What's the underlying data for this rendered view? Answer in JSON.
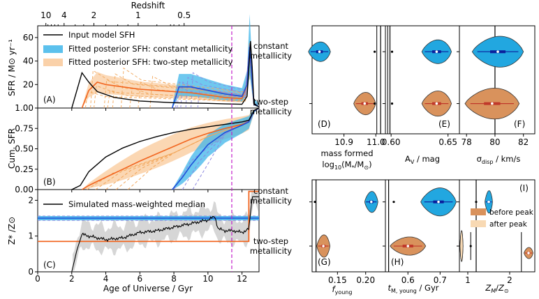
{
  "chart_data": [
    {
      "type": "line",
      "panel_label": "(A)",
      "title": "Redshift",
      "top_ticks": [
        "10",
        "4",
        "2",
        "1",
        "0.5"
      ],
      "top_tick_ages": [
        0.48,
        1.55,
        3.3,
        5.9,
        8.6
      ],
      "ylabel": "SFR / M⊙ yr⁻¹",
      "ylim": [
        0,
        70
      ],
      "xlim": [
        0,
        13
      ],
      "y_ticks": [
        "1.00",
        "20",
        "40",
        "60"
      ],
      "y_tick_values": [
        0,
        20,
        40,
        60
      ],
      "legend": [
        "Input model SFH",
        "Fitted posterior SFH: constant metallicity",
        "Fitted posterior SFH: two-step metallicity"
      ],
      "colors": {
        "input": "#000000",
        "constant": "#1f4fd8",
        "constant_band": "#3fb6ea",
        "twostep": "#f2651f",
        "twostep_band": "#f9c99a",
        "twostep_dash": "#f2a65a",
        "constant_dash": "#8b87e0"
      },
      "series": [
        {
          "name": "Input model SFH",
          "x": [
            2.0,
            2.6,
            3.0,
            3.5,
            4.5,
            6.0,
            8.0,
            10.0,
            11.0,
            12.0,
            12.3,
            12.5,
            12.6,
            12.7,
            13.0
          ],
          "y": [
            0,
            30,
            22,
            14,
            9,
            6,
            4.5,
            4,
            3.5,
            3.2,
            10,
            57,
            35,
            3,
            1
          ]
        },
        {
          "name": "Fitted posterior SFH: constant metallicity",
          "x": [
            7.9,
            8.3,
            9.0,
            10.0,
            11.0,
            12.0,
            12.3,
            12.45,
            12.6,
            12.7,
            13.0
          ],
          "y": [
            0,
            18,
            18,
            15,
            12,
            10,
            20,
            52,
            22,
            4,
            1
          ]
        },
        {
          "name": "Fitted posterior SFH: two-step metallicity",
          "x": [
            2.6,
            3.0,
            3.5,
            4.0,
            5.0,
            6.0,
            7.0,
            8.0,
            9.0,
            10.0,
            11.0,
            12.0,
            12.3,
            12.45,
            12.6,
            12.7,
            13.0
          ],
          "y": [
            0,
            15,
            22,
            20,
            18,
            16,
            15,
            14,
            13,
            11,
            9,
            8,
            20,
            50,
            22,
            4,
            1
          ]
        }
      ],
      "annotations": [
        "vertical dashed line at age 11.4 Gyr"
      ]
    },
    {
      "type": "line",
      "panel_label": "(B)",
      "ylabel": "Cum. SFR",
      "ylim": [
        0,
        1
      ],
      "xlim": [
        0,
        13
      ],
      "y_ticks": [
        "0.00",
        "0.25",
        "0.50",
        "0.75"
      ],
      "y_tick_values": [
        0,
        0.25,
        0.5,
        0.75
      ],
      "series": [
        {
          "name": "Input model SFH",
          "x": [
            2.0,
            2.5,
            3.0,
            4.0,
            5.0,
            6.0,
            7.0,
            8.0,
            9.0,
            10.0,
            11.0,
            12.0,
            12.4,
            12.7,
            13.0
          ],
          "y": [
            0,
            0.05,
            0.22,
            0.4,
            0.51,
            0.59,
            0.65,
            0.7,
            0.74,
            0.77,
            0.8,
            0.83,
            0.85,
            0.97,
            1.0
          ]
        },
        {
          "name": "Fitted posterior SFH: two-step metallicity",
          "x": [
            2.6,
            3.0,
            4.0,
            5.0,
            6.0,
            7.0,
            8.0,
            9.0,
            10.0,
            11.0,
            12.0,
            12.4,
            12.7,
            13.0
          ],
          "y": [
            0,
            0.05,
            0.15,
            0.25,
            0.35,
            0.44,
            0.53,
            0.62,
            0.69,
            0.75,
            0.8,
            0.83,
            0.96,
            1.0
          ]
        },
        {
          "name": "Fitted posterior SFH: constant metallicity",
          "x": [
            7.9,
            8.5,
            9.0,
            10.0,
            11.0,
            12.0,
            12.4,
            12.7,
            13.0
          ],
          "y": [
            0,
            0.15,
            0.3,
            0.55,
            0.7,
            0.79,
            0.83,
            0.96,
            1.0
          ]
        }
      ]
    },
    {
      "type": "line",
      "panel_label": "(C)",
      "ylabel": "Z* /Z⊙",
      "xlabel": "Age of Universe / Gyr",
      "ylim": [
        0,
        2.3
      ],
      "xlim": [
        0,
        13
      ],
      "x_ticks": [
        "0",
        "2",
        "4",
        "6",
        "8",
        "10",
        "12"
      ],
      "x_tick_values": [
        0,
        2,
        4,
        6,
        8,
        10,
        12
      ],
      "y_ticks": [
        "0",
        "1",
        "2"
      ],
      "y_tick_values": [
        0,
        1,
        2
      ],
      "legend": [
        "Simulated mass-weighted median"
      ],
      "series": [
        {
          "name": "Simulated mass-weighted median",
          "x": [
            2.0,
            2.3,
            2.6,
            3.0,
            4.0,
            5.0,
            6.0,
            7.0,
            8.0,
            9.0,
            10.0,
            10.4,
            10.6,
            11.0,
            11.5,
            12.0,
            12.4,
            12.6,
            13.0
          ],
          "y": [
            0,
            0.6,
            1.05,
            1.0,
            0.9,
            0.95,
            1.1,
            1.15,
            1.25,
            1.35,
            1.45,
            1.55,
            1.2,
            1.15,
            1.15,
            1.1,
            1.2,
            2.1,
            2.1
          ]
        },
        {
          "name": "constant metallicity",
          "x": [
            0,
            13
          ],
          "y": [
            1.5,
            1.5
          ]
        },
        {
          "name": "two-step metallicity",
          "x": [
            0,
            12.4,
            12.4,
            13
          ],
          "y": [
            0.85,
            0.85,
            2.25,
            2.25
          ]
        }
      ]
    },
    {
      "type": "violin",
      "rows": [
        "constant metallicity",
        "two-step metallicity"
      ],
      "panels": [
        {
          "label": "(D)",
          "xlabel": "mass formed log10(M*/M⊙)",
          "x_ticks": [
            "10.9",
            "11.0"
          ],
          "x_tick_values": [
            10.9,
            11.0
          ],
          "xlim": [
            10.8,
            11.03
          ],
          "true_value": 11.015,
          "constant_median": 10.81,
          "twostep_median": 10.965
        },
        {
          "label": "(E)",
          "xlabel": "AV / mag",
          "x_ticks": [
            "0.60",
            "0.65"
          ],
          "x_tick_values": [
            0.6,
            0.65
          ],
          "xlim": [
            0.595,
            0.66
          ],
          "true_value": 0.599,
          "constant_median": 0.64,
          "twostep_median": 0.64
        },
        {
          "label": "(F)",
          "xlabel": "σdisp / km/s",
          "x_ticks": [
            "78",
            "80",
            "82"
          ],
          "x_tick_values": [
            78,
            80,
            82
          ],
          "xlim": [
            77.5,
            82.8
          ],
          "true_value": 80.0,
          "constant_median": 80.2,
          "twostep_median": 79.8
        },
        {
          "label": "(G)",
          "xlabel": "fyoung",
          "x_ticks": [
            "0.15",
            "0.20"
          ],
          "x_tick_values": [
            0.15,
            0.2
          ],
          "xlim": [
            0.105,
            0.235
          ],
          "true_value": 0.112,
          "constant_median": 0.21,
          "twostep_median": 0.125
        },
        {
          "label": "(H)",
          "xlabel": "tM, young / Gyr",
          "x_ticks": [
            "0.6",
            "0.7"
          ],
          "x_tick_values": [
            0.6,
            0.7
          ],
          "xlim": [
            0.53,
            0.76
          ],
          "true_value": 0.54,
          "constant_median": 0.695,
          "twostep_median": 0.6
        },
        {
          "label": "(I)",
          "xlabel": "ZM/Z⊙",
          "x_ticks": [
            "1",
            "2"
          ],
          "x_tick_values": [
            1,
            2
          ],
          "xlim": [
            0.8,
            2.6
          ],
          "true_value": 1.2,
          "constant_median": 1.5,
          "twostep_median": 2.45,
          "legend": [
            "before peak",
            "after peak"
          ]
        }
      ]
    }
  ]
}
